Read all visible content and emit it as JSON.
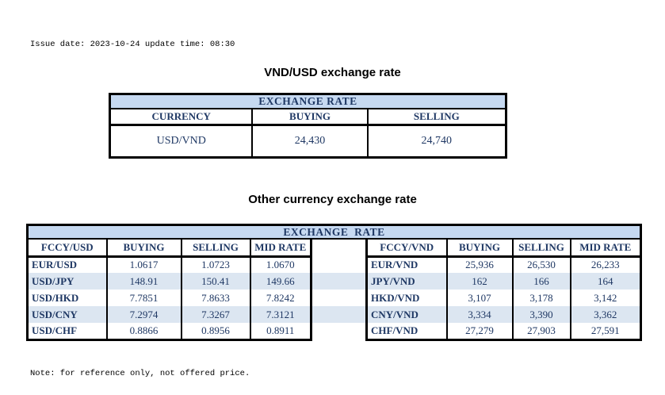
{
  "colors": {
    "header_fill": "#C6D9F1",
    "alt_row_fill": "#DCE6F1",
    "table_text": "#1F3864",
    "border": "#000000"
  },
  "header": {
    "issue_line": "Issue date: 2023-10-24 update time: 08:30"
  },
  "footer": {
    "note_line": "Note: for reference only, not offered price."
  },
  "vnd_usd_section": {
    "title": "VND/USD exchange rate",
    "table_title": "EXCHANGE RATE",
    "columns": [
      "CURRENCY",
      "BUYING",
      "SELLING"
    ],
    "row": {
      "currency": "USD/VND",
      "buying": "24,430",
      "selling": "24,740"
    }
  },
  "other_section": {
    "title": "Other currency exchange rate",
    "table_title": "EXCHANGE  RATE",
    "usd_block": {
      "columns": [
        "FCCY/USD",
        "BUYING",
        "SELLING",
        "MID RATE"
      ],
      "rows": [
        {
          "pair": "EUR/USD",
          "buying": "1.0617",
          "selling": "1.0723",
          "mid": "1.0670"
        },
        {
          "pair": "USD/JPY",
          "buying": "148.91",
          "selling": "150.41",
          "mid": "149.66"
        },
        {
          "pair": "USD/HKD",
          "buying": "7.7851",
          "selling": "7.8633",
          "mid": "7.8242"
        },
        {
          "pair": "USD/CNY",
          "buying": "7.2974",
          "selling": "7.3267",
          "mid": "7.3121"
        },
        {
          "pair": "USD/CHF",
          "buying": "0.8866",
          "selling": "0.8956",
          "mid": "0.8911"
        }
      ]
    },
    "vnd_block": {
      "columns": [
        "FCCY/VND",
        "BUYING",
        "SELLING",
        "MID RATE"
      ],
      "rows": [
        {
          "pair": "EUR/VND",
          "buying": "25,936",
          "selling": "26,530",
          "mid": "26,233"
        },
        {
          "pair": "JPY/VND",
          "buying": "162",
          "selling": "166",
          "mid": "164"
        },
        {
          "pair": "HKD/VND",
          "buying": "3,107",
          "selling": "3,178",
          "mid": "3,142"
        },
        {
          "pair": "CNY/VND",
          "buying": "3,334",
          "selling": "3,390",
          "mid": "3,362"
        },
        {
          "pair": "CHF/VND",
          "buying": "27,279",
          "selling": "27,903",
          "mid": "27,591"
        }
      ]
    }
  }
}
